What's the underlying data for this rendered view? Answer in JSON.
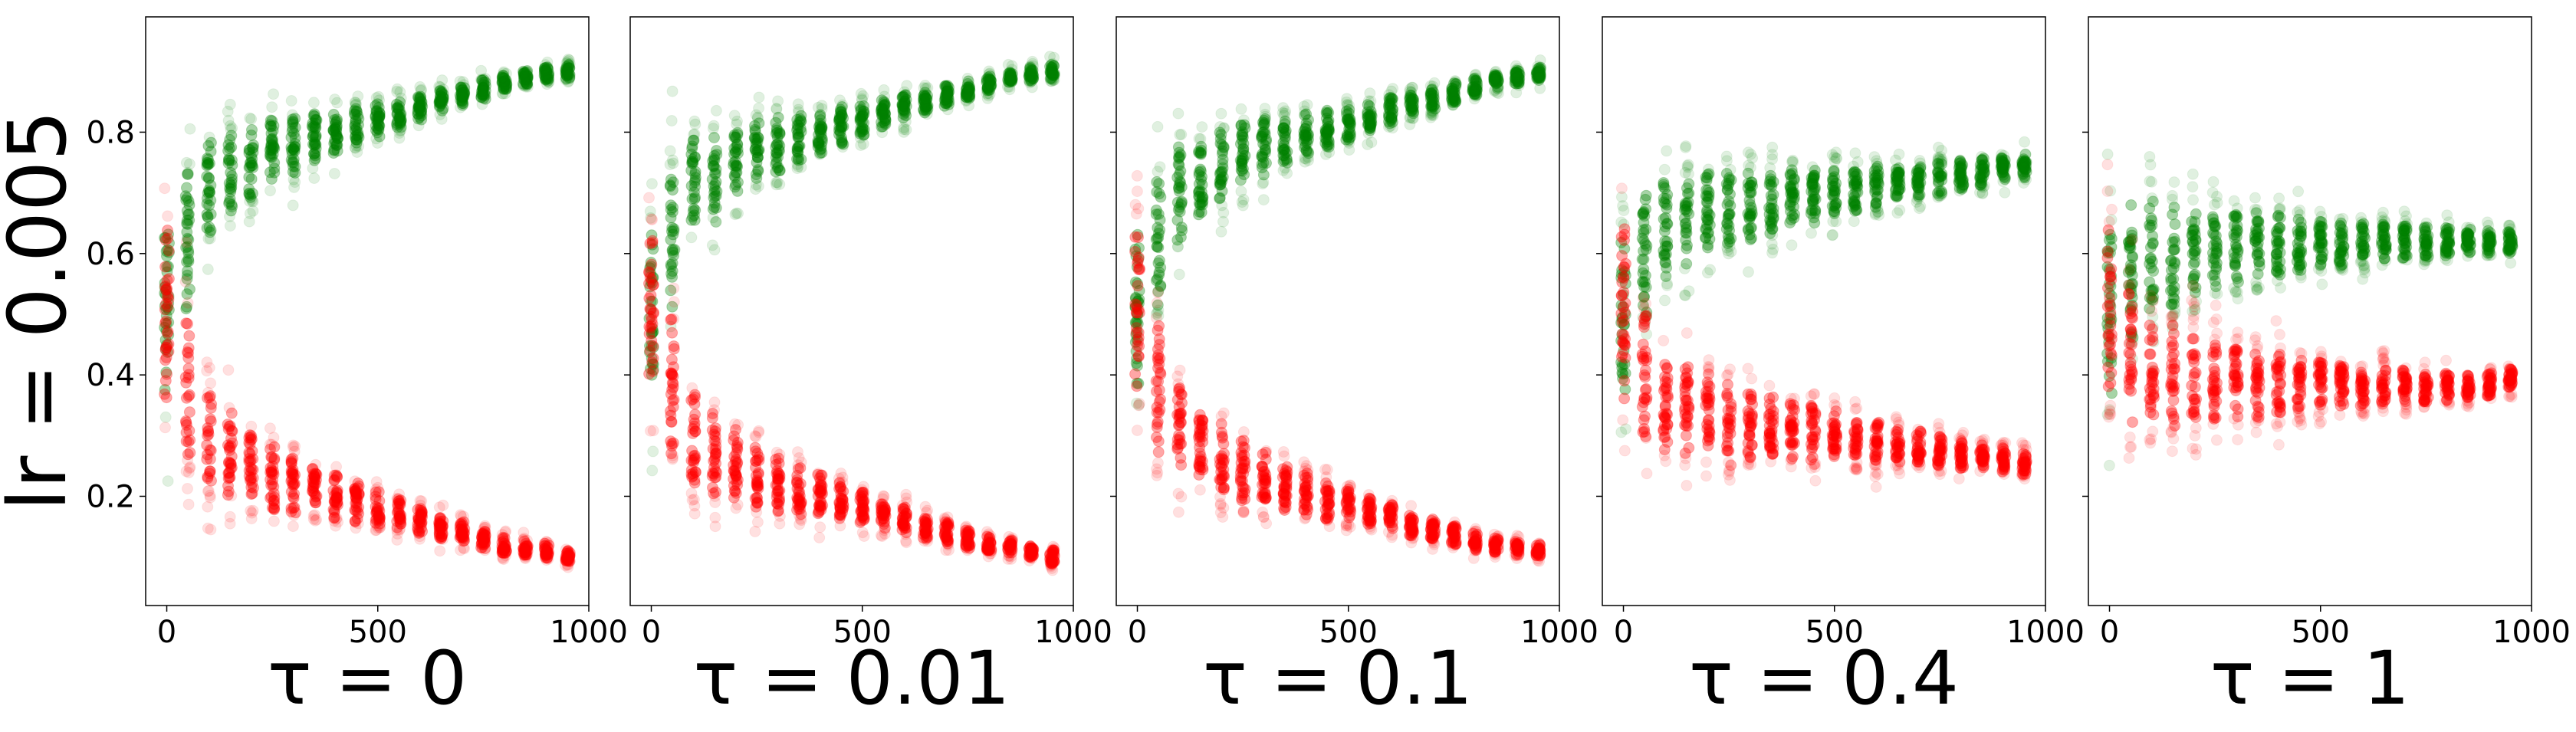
{
  "figure": {
    "row_label": "lr = 0.005"
  },
  "colors": {
    "upper_cluster": "#008000",
    "lower_cluster": "#ff0000",
    "axes": "#000000"
  },
  "chart_data": [
    {
      "type": "scatter",
      "title": "τ = 0",
      "xlim": [
        -50,
        1000
      ],
      "ylim": [
        0.02,
        0.99
      ],
      "xticks": [
        0,
        500,
        1000
      ],
      "yticks": [
        0.2,
        0.4,
        0.6,
        0.8
      ],
      "x": [
        0,
        50,
        100,
        150,
        200,
        250,
        300,
        350,
        400,
        450,
        500,
        550,
        600,
        650,
        700,
        750,
        800,
        850,
        900,
        950
      ],
      "series": [
        {
          "color": "#008000",
          "center": [
            0.5,
            0.62,
            0.71,
            0.73,
            0.75,
            0.77,
            0.78,
            0.79,
            0.8,
            0.81,
            0.82,
            0.83,
            0.84,
            0.85,
            0.86,
            0.87,
            0.88,
            0.89,
            0.895,
            0.9
          ],
          "spread": [
            0.36,
            0.28,
            0.2,
            0.17,
            0.15,
            0.13,
            0.12,
            0.1,
            0.09,
            0.08,
            0.07,
            0.06,
            0.055,
            0.05,
            0.045,
            0.04,
            0.035,
            0.03,
            0.03,
            0.03
          ]
        },
        {
          "color": "#ff0000",
          "center": [
            0.5,
            0.38,
            0.29,
            0.27,
            0.25,
            0.23,
            0.22,
            0.21,
            0.2,
            0.19,
            0.18,
            0.17,
            0.16,
            0.15,
            0.14,
            0.13,
            0.12,
            0.115,
            0.11,
            0.1
          ],
          "spread": [
            0.36,
            0.28,
            0.2,
            0.17,
            0.15,
            0.13,
            0.12,
            0.1,
            0.09,
            0.08,
            0.07,
            0.06,
            0.055,
            0.05,
            0.045,
            0.04,
            0.035,
            0.03,
            0.03,
            0.03
          ]
        }
      ]
    },
    {
      "type": "scatter",
      "title": "τ = 0.01",
      "xlim": [
        -50,
        1000
      ],
      "ylim": [
        0.02,
        0.99
      ],
      "xticks": [
        0,
        500,
        1000
      ],
      "yticks": [
        0.2,
        0.4,
        0.6,
        0.8
      ],
      "x": [
        0,
        50,
        100,
        150,
        200,
        250,
        300,
        350,
        400,
        450,
        500,
        550,
        600,
        650,
        700,
        750,
        800,
        850,
        900,
        950
      ],
      "series": [
        {
          "color": "#008000",
          "center": [
            0.5,
            0.62,
            0.71,
            0.73,
            0.75,
            0.77,
            0.78,
            0.79,
            0.8,
            0.81,
            0.82,
            0.83,
            0.84,
            0.85,
            0.86,
            0.87,
            0.88,
            0.89,
            0.895,
            0.9
          ],
          "spread": [
            0.36,
            0.28,
            0.2,
            0.17,
            0.15,
            0.13,
            0.12,
            0.1,
            0.09,
            0.08,
            0.07,
            0.06,
            0.055,
            0.05,
            0.045,
            0.04,
            0.035,
            0.03,
            0.03,
            0.03
          ]
        },
        {
          "color": "#ff0000",
          "center": [
            0.5,
            0.38,
            0.29,
            0.27,
            0.25,
            0.23,
            0.22,
            0.21,
            0.2,
            0.19,
            0.18,
            0.17,
            0.16,
            0.15,
            0.14,
            0.13,
            0.12,
            0.115,
            0.11,
            0.1
          ],
          "spread": [
            0.36,
            0.28,
            0.2,
            0.17,
            0.15,
            0.13,
            0.12,
            0.1,
            0.09,
            0.08,
            0.07,
            0.06,
            0.055,
            0.05,
            0.045,
            0.04,
            0.035,
            0.03,
            0.03,
            0.03
          ]
        }
      ]
    },
    {
      "type": "scatter",
      "title": "τ = 0.1",
      "xlim": [
        -50,
        1000
      ],
      "ylim": [
        0.02,
        0.99
      ],
      "xticks": [
        0,
        500,
        1000
      ],
      "yticks": [
        0.2,
        0.4,
        0.6,
        0.8
      ],
      "x": [
        0,
        50,
        100,
        150,
        200,
        250,
        300,
        350,
        400,
        450,
        500,
        550,
        600,
        650,
        700,
        750,
        800,
        850,
        900,
        950
      ],
      "series": [
        {
          "color": "#008000",
          "center": [
            0.5,
            0.62,
            0.7,
            0.72,
            0.74,
            0.76,
            0.775,
            0.785,
            0.795,
            0.805,
            0.815,
            0.825,
            0.835,
            0.845,
            0.855,
            0.865,
            0.875,
            0.885,
            0.89,
            0.895
          ],
          "spread": [
            0.36,
            0.28,
            0.2,
            0.17,
            0.15,
            0.13,
            0.12,
            0.1,
            0.09,
            0.08,
            0.07,
            0.06,
            0.055,
            0.05,
            0.045,
            0.04,
            0.035,
            0.03,
            0.03,
            0.03
          ]
        },
        {
          "color": "#ff0000",
          "center": [
            0.5,
            0.38,
            0.3,
            0.28,
            0.26,
            0.24,
            0.225,
            0.215,
            0.205,
            0.195,
            0.185,
            0.175,
            0.165,
            0.155,
            0.145,
            0.135,
            0.125,
            0.12,
            0.115,
            0.11
          ],
          "spread": [
            0.36,
            0.28,
            0.2,
            0.17,
            0.15,
            0.13,
            0.12,
            0.1,
            0.09,
            0.08,
            0.07,
            0.06,
            0.055,
            0.05,
            0.045,
            0.04,
            0.035,
            0.03,
            0.03,
            0.03
          ]
        }
      ]
    },
    {
      "type": "scatter",
      "title": "τ = 0.4",
      "xlim": [
        -50,
        1000
      ],
      "ylim": [
        0.02,
        0.99
      ],
      "xticks": [
        0,
        500,
        1000
      ],
      "yticks": [
        0.2,
        0.4,
        0.6,
        0.8
      ],
      "x": [
        0,
        50,
        100,
        150,
        200,
        250,
        300,
        350,
        400,
        450,
        500,
        550,
        600,
        650,
        700,
        750,
        800,
        850,
        900,
        950
      ],
      "series": [
        {
          "color": "#008000",
          "center": [
            0.5,
            0.6,
            0.64,
            0.655,
            0.665,
            0.675,
            0.68,
            0.685,
            0.69,
            0.695,
            0.7,
            0.705,
            0.71,
            0.715,
            0.72,
            0.725,
            0.73,
            0.735,
            0.74,
            0.745
          ],
          "spread": [
            0.36,
            0.26,
            0.21,
            0.19,
            0.17,
            0.155,
            0.145,
            0.135,
            0.125,
            0.115,
            0.105,
            0.095,
            0.085,
            0.075,
            0.07,
            0.065,
            0.06,
            0.055,
            0.05,
            0.05
          ]
        },
        {
          "color": "#ff0000",
          "center": [
            0.5,
            0.4,
            0.36,
            0.345,
            0.335,
            0.325,
            0.32,
            0.315,
            0.31,
            0.305,
            0.3,
            0.295,
            0.29,
            0.285,
            0.28,
            0.275,
            0.27,
            0.265,
            0.26,
            0.255
          ],
          "spread": [
            0.36,
            0.26,
            0.21,
            0.19,
            0.17,
            0.155,
            0.145,
            0.135,
            0.125,
            0.115,
            0.105,
            0.095,
            0.085,
            0.075,
            0.07,
            0.065,
            0.06,
            0.055,
            0.05,
            0.05
          ]
        }
      ]
    },
    {
      "type": "scatter",
      "title": "τ = 1",
      "xlim": [
        -50,
        1000
      ],
      "ylim": [
        0.02,
        0.99
      ],
      "xticks": [
        0,
        500,
        1000
      ],
      "yticks": [
        0.2,
        0.4,
        0.6,
        0.8
      ],
      "x": [
        0,
        50,
        100,
        150,
        200,
        250,
        300,
        350,
        400,
        450,
        500,
        550,
        600,
        650,
        700,
        750,
        800,
        850,
        900,
        950
      ],
      "series": [
        {
          "color": "#008000",
          "center": [
            0.5,
            0.57,
            0.595,
            0.6,
            0.605,
            0.61,
            0.61,
            0.615,
            0.615,
            0.615,
            0.615,
            0.615,
            0.62,
            0.62,
            0.62,
            0.62,
            0.62,
            0.62,
            0.62,
            0.62
          ],
          "spread": [
            0.36,
            0.28,
            0.24,
            0.21,
            0.19,
            0.17,
            0.155,
            0.14,
            0.125,
            0.11,
            0.1,
            0.09,
            0.08,
            0.075,
            0.07,
            0.065,
            0.06,
            0.055,
            0.05,
            0.05
          ]
        },
        {
          "color": "#ff0000",
          "center": [
            0.5,
            0.43,
            0.405,
            0.4,
            0.395,
            0.39,
            0.39,
            0.385,
            0.385,
            0.385,
            0.385,
            0.385,
            0.38,
            0.38,
            0.38,
            0.38,
            0.38,
            0.38,
            0.385,
            0.39
          ],
          "spread": [
            0.36,
            0.28,
            0.24,
            0.21,
            0.19,
            0.17,
            0.155,
            0.14,
            0.125,
            0.11,
            0.1,
            0.09,
            0.08,
            0.075,
            0.07,
            0.065,
            0.06,
            0.055,
            0.05,
            0.05
          ]
        }
      ]
    }
  ]
}
